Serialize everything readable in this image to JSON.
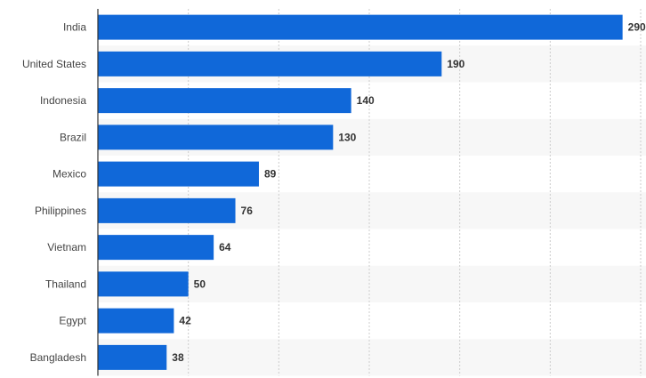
{
  "chart_data": {
    "type": "bar",
    "orientation": "horizontal",
    "categories": [
      "India",
      "United States",
      "Indonesia",
      "Brazil",
      "Mexico",
      "Philippines",
      "Vietnam",
      "Thailand",
      "Egypt",
      "Bangladesh"
    ],
    "values": [
      290,
      190,
      140,
      130,
      89,
      76,
      64,
      50,
      42,
      38
    ],
    "xlim": [
      0,
      300
    ],
    "x_grid_step": 50,
    "grid": true,
    "data_labels": true,
    "bar_color": "#1068d9",
    "stripe_color": "#f7f7f7",
    "title": "",
    "xlabel": "",
    "ylabel": ""
  }
}
